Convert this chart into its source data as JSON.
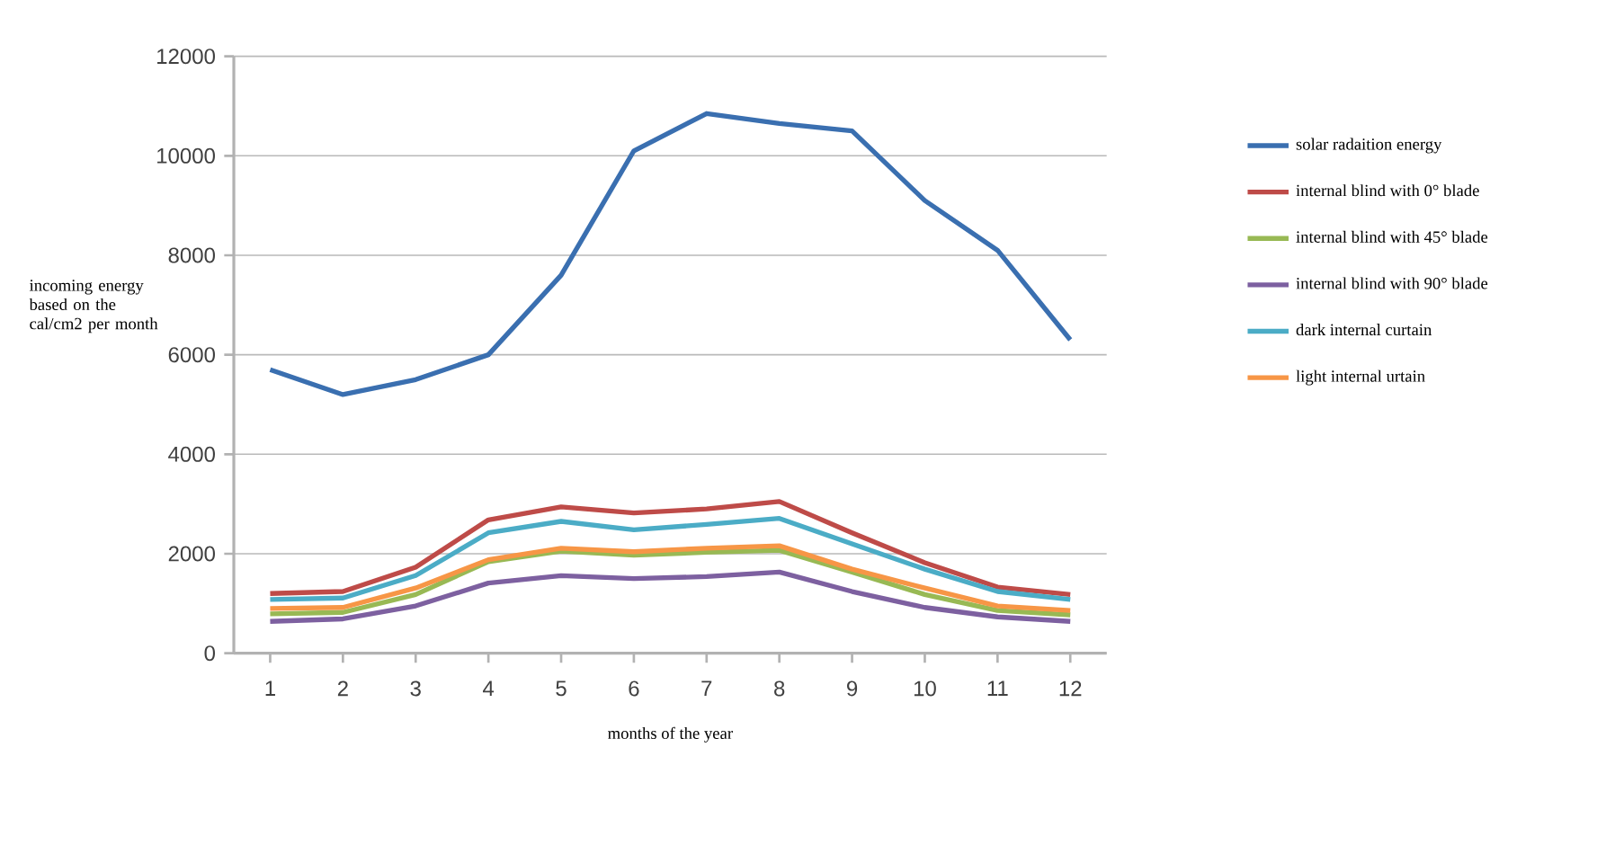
{
  "chart_data": {
    "type": "line",
    "xlabel": "months of the year",
    "ylabel": "incoming energy based on the cal/cm2 per month",
    "categories": [
      "1",
      "2",
      "3",
      "4",
      "5",
      "6",
      "7",
      "8",
      "9",
      "10",
      "11",
      "12"
    ],
    "series": [
      {
        "name": "solar radaition energy",
        "color": "#3a6fb0",
        "values": [
          5700,
          5200,
          5500,
          6000,
          7600,
          10100,
          10850,
          10650,
          10500,
          9100,
          8100,
          6300
        ]
      },
      {
        "name": "internal blind with 0° blade",
        "color": "#be4b48",
        "values": [
          1200,
          1240,
          1730,
          2680,
          2940,
          2820,
          2900,
          3050,
          2420,
          1820,
          1330,
          1180
        ]
      },
      {
        "name": "internal blind with 45° blade",
        "color": "#98b954",
        "values": [
          790,
          820,
          1180,
          1840,
          2050,
          1970,
          2030,
          2070,
          1630,
          1180,
          860,
          770
        ]
      },
      {
        "name": "internal blind with 90° blade",
        "color": "#7d60a0",
        "values": [
          640,
          690,
          950,
          1410,
          1560,
          1500,
          1540,
          1630,
          1240,
          920,
          730,
          640
        ]
      },
      {
        "name": "dark internal curtain",
        "color": "#4bacc6",
        "values": [
          1080,
          1110,
          1560,
          2420,
          2650,
          2480,
          2590,
          2710,
          2200,
          1690,
          1240,
          1080
        ]
      },
      {
        "name": "light internal urtain",
        "color": "#f79646",
        "values": [
          900,
          920,
          1310,
          1880,
          2110,
          2040,
          2110,
          2160,
          1690,
          1310,
          950,
          860
        ]
      }
    ],
    "ylim": [
      0,
      12000
    ],
    "yticks": [
      0,
      2000,
      4000,
      6000,
      8000,
      10000,
      12000
    ],
    "grid": "y",
    "legend": "right",
    "marker": "none",
    "line_style": "solid"
  }
}
